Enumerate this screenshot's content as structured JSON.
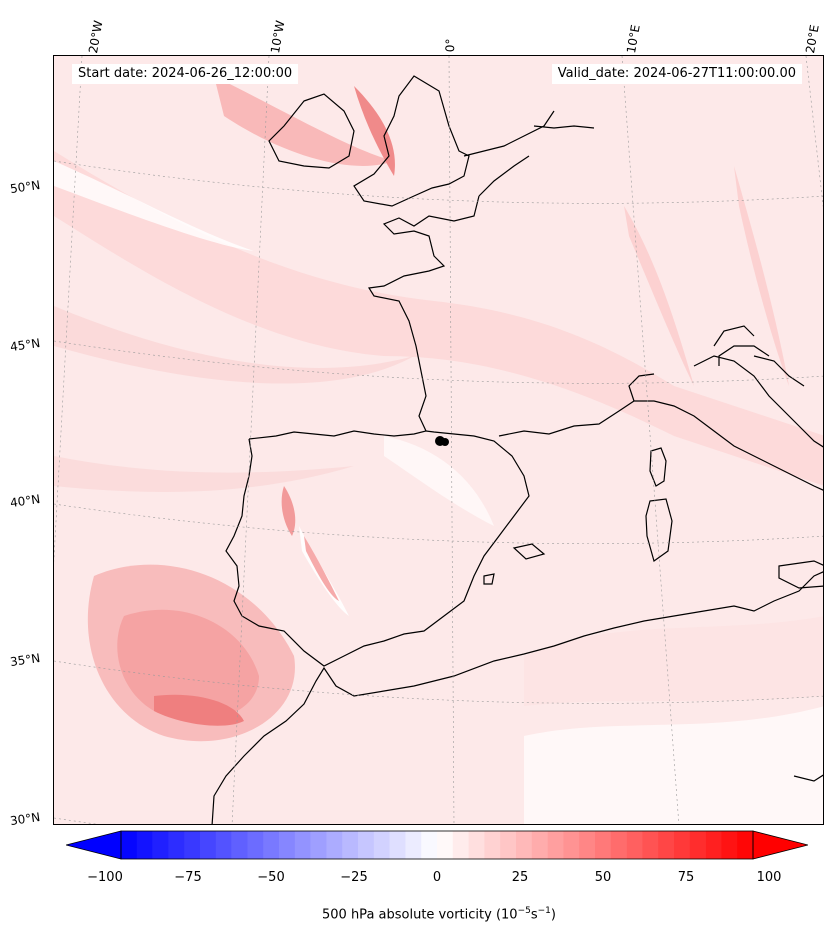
{
  "header": {
    "start_date": "Start date: 2024-06-26_12:00:00",
    "valid_date": "Valid_date: 2024-06-27T11:00:00.00"
  },
  "graticule": {
    "lon_labels": [
      "20°W",
      "10°W",
      "0°",
      "10°E",
      "20°E"
    ],
    "lat_labels": [
      "50°N",
      "45°N",
      "40°N",
      "35°N",
      "30°N"
    ]
  },
  "colorbar": {
    "ticks": [
      "−100",
      "−75",
      "−50",
      "−25",
      "0",
      "25",
      "50",
      "75",
      "100"
    ],
    "label_main": "500 hPa absolute vorticity (10",
    "label_exp1": "−5",
    "label_mid": "s",
    "label_exp2": "−1",
    "label_end": ")",
    "range": [
      -100,
      100
    ],
    "colormap": "bwr"
  },
  "colors": {
    "background_tint": "#fde9e9",
    "vorticity_strong": "#f47a7a",
    "vorticity_medium": "#f9b6b6",
    "vorticity_weak": "#fcd6d6",
    "low_vorticity": "#fff6f6",
    "coastline": "#000000"
  }
}
